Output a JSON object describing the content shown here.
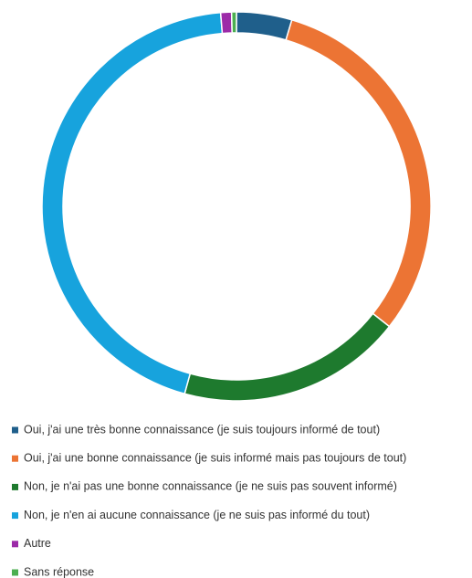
{
  "chart_data": {
    "type": "donut",
    "categories": [
      "Oui, j'ai une très bonne connaissance (je suis toujours informé de tout)",
      "Oui, j'ai une bonne connaissance (je suis informé mais pas toujours de tout)",
      "Non, je n'ai pas une bonne connaissance (je ne suis pas souvent informé)",
      "Non, je n'en ai aucune connaissance (je ne suis pas informé du tout)",
      "Autre",
      "Sans réponse"
    ],
    "values": [
      4.6,
      31,
      18.7,
      44.4,
      0.9,
      0.4
    ],
    "colors": [
      "#1f5f8b",
      "#ec7434",
      "#1e7a2e",
      "#17a3dd",
      "#9c2aa8",
      "#4caf50"
    ],
    "legend": "bottom"
  }
}
